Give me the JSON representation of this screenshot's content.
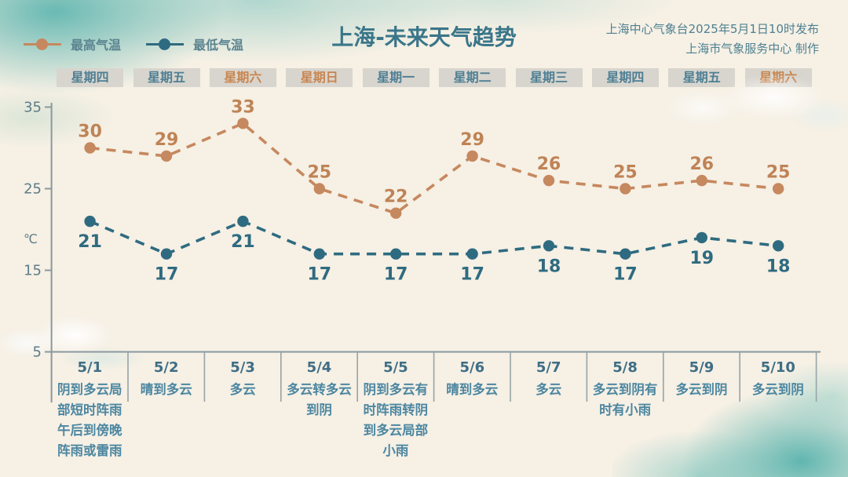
{
  "header": {
    "title": "上海-未来天气趋势",
    "publisher_line1": "上海中心气象台2025年5月1日10时发布",
    "publisher_line2": "上海市气象服务中心 制作"
  },
  "legend": {
    "items": [
      {
        "label": "最高气温"
      },
      {
        "label": "最低气温"
      }
    ]
  },
  "colors": {
    "background": "#f6f0e5",
    "title": "#3a7689",
    "publisher": "#4e8191",
    "axis": "#8a989e",
    "divider": "#97a4a8",
    "tick_label": "#5f7c87",
    "week_box_bg": "#d8d5ce",
    "weekday_text": "#4e7f94",
    "weekend_text": "#c8854f",
    "date_text": "#3f6e85",
    "weather_text": "#4d87a1",
    "watercolor": "#6fbeb8"
  },
  "chart_data": {
    "type": "line",
    "title": "上海-未来天气趋势",
    "ylabel": "℃",
    "yticks": [
      35,
      25,
      15,
      5
    ],
    "ylim": [
      5,
      37
    ],
    "grid": false,
    "legend_position": "top-left",
    "line_style": "dashed",
    "categories": [
      "5/1",
      "5/2",
      "5/3",
      "5/4",
      "5/5",
      "5/6",
      "5/7",
      "5/8",
      "5/9",
      "5/10"
    ],
    "weekdays": [
      {
        "label": "星期四",
        "weekend": false
      },
      {
        "label": "星期五",
        "weekend": false
      },
      {
        "label": "星期六",
        "weekend": true
      },
      {
        "label": "星期日",
        "weekend": true
      },
      {
        "label": "星期一",
        "weekend": false
      },
      {
        "label": "星期二",
        "weekend": false
      },
      {
        "label": "星期三",
        "weekend": false
      },
      {
        "label": "星期四",
        "weekend": false
      },
      {
        "label": "星期五",
        "weekend": false
      },
      {
        "label": "星期六",
        "weekend": true
      }
    ],
    "series": [
      {
        "key": "high-temp",
        "name": "最高气温",
        "color": "#c6885e",
        "label_color": "#bf8355",
        "label_position": "above",
        "values": [
          30,
          29,
          33,
          25,
          22,
          29,
          26,
          25,
          26,
          25
        ]
      },
      {
        "key": "low-temp",
        "name": "最低气温",
        "color": "#2f6b80",
        "label_color": "#2f6b80",
        "label_position": "below",
        "values": [
          21,
          17,
          21,
          17,
          17,
          17,
          18,
          17,
          19,
          18
        ]
      }
    ],
    "weather": [
      "阴到多云局部短时阵雨午后到傍晚阵雨或雷雨",
      "晴到多云",
      "多云",
      "多云转多云到阴",
      "阴到多云有时阵雨转阴到多云局部小雨",
      "晴到多云",
      "多云",
      "多云到阴有时有小雨",
      "多云到阴",
      "多云到阴"
    ]
  }
}
